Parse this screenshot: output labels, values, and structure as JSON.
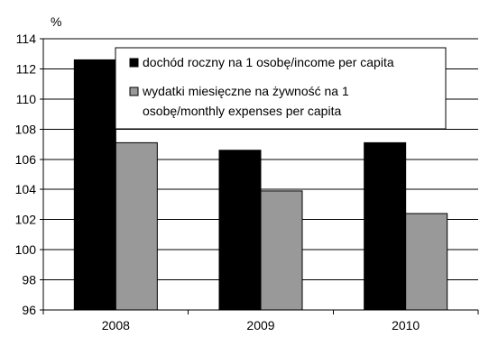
{
  "chart_data": {
    "type": "bar",
    "unit_label": "%",
    "categories": [
      "2008",
      "2009",
      "2010"
    ],
    "series": [
      {
        "name": "dochód roczny na 1 osobę/income per capita",
        "legend_lines": [
          "dochód roczny na 1 osobę/income per capita"
        ],
        "color": "#000000",
        "values": [
          112.6,
          106.6,
          107.1
        ]
      },
      {
        "name": "wydatki miesięczne na żywność na 1 osobę/monthly expenses per capita",
        "legend_lines": [
          "wydatki miesięczne na żywność na 1",
          "osobę/monthly expenses per capita"
        ],
        "color": "#999999",
        "values": [
          107.1,
          103.9,
          102.4
        ]
      }
    ],
    "ylim": [
      96,
      114
    ],
    "yticks": [
      96,
      98,
      100,
      102,
      104,
      106,
      108,
      110,
      112,
      114
    ],
    "grid": true,
    "legend_position": "top-center",
    "title": "",
    "xlabel": "",
    "ylabel": ""
  }
}
